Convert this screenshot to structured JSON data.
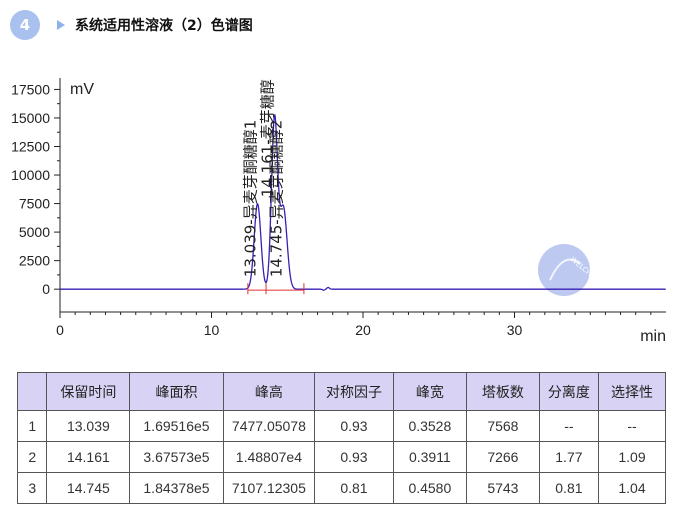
{
  "header": {
    "step_number": "4",
    "title": "系统适用性溶液（2）色谱图"
  },
  "chart_data": {
    "type": "line",
    "ylabel": "mV",
    "xlabel": "min",
    "xlim": [
      0,
      40
    ],
    "ylim": [
      -2000,
      18500
    ],
    "xticks": [
      0,
      10,
      20,
      30
    ],
    "yticks": [
      0,
      2500,
      5000,
      7500,
      10000,
      12500,
      15000,
      17500
    ],
    "peaks": [
      {
        "rt": 13.039,
        "height": 7477,
        "label": "13.039-异麦芽酮糖醇1"
      },
      {
        "rt": 14.161,
        "height": 14881,
        "label": "14.161-麦芽糖醇"
      },
      {
        "rt": 14.745,
        "height": 7107,
        "label": "14.745-异麦芽酮糖醇2"
      }
    ],
    "watermark": "WELCH",
    "colors": {
      "trace": "#3a1fb5",
      "baseline": "#e03030",
      "axis": "#222222"
    }
  },
  "table": {
    "headers": [
      "",
      "保留时间",
      "峰面积",
      "峰高",
      "对称因子",
      "峰宽",
      "塔板数",
      "分离度",
      "选择性"
    ],
    "rows": [
      [
        "1",
        "13.039",
        "1.69516e5",
        "7477.05078",
        "0.93",
        "0.3528",
        "7568",
        "--",
        "--"
      ],
      [
        "2",
        "14.161",
        "3.67573e5",
        "1.48807e4",
        "0.93",
        "0.3911",
        "7266",
        "1.77",
        "1.09"
      ],
      [
        "3",
        "14.745",
        "1.84378e5",
        "7107.12305",
        "0.81",
        "0.4580",
        "5743",
        "0.81",
        "1.04"
      ]
    ]
  }
}
